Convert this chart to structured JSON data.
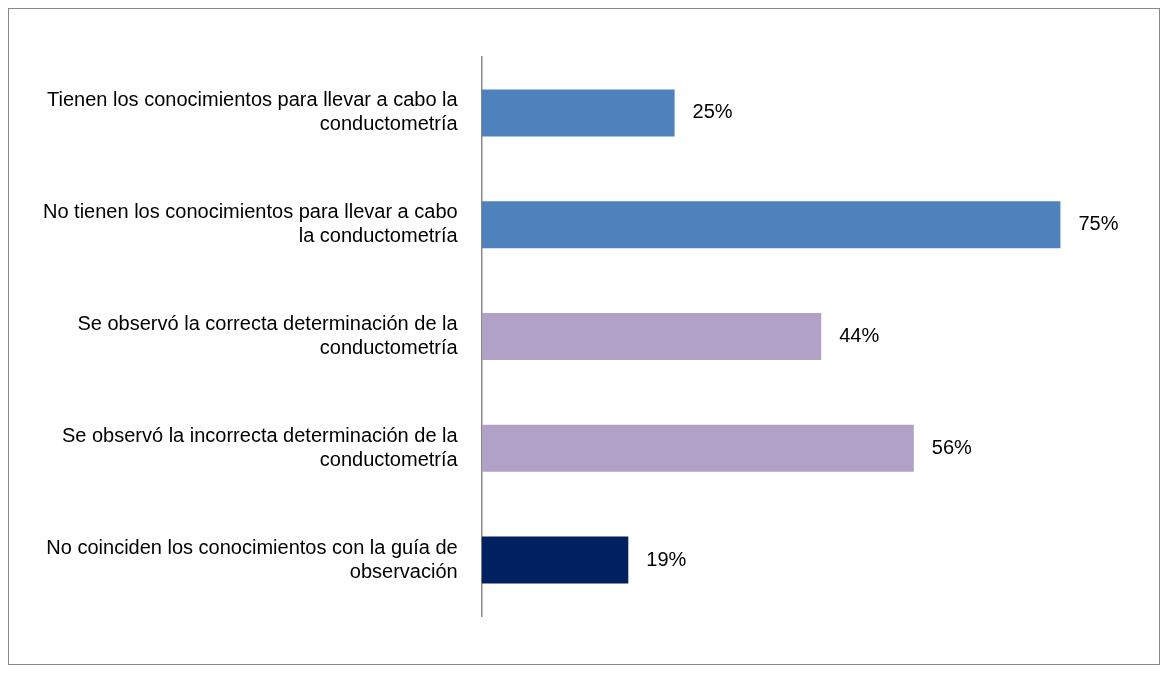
{
  "chart_data": {
    "type": "bar",
    "orientation": "horizontal",
    "categories": [
      "Tienen los conocimientos para llevar a cabo la conductometría",
      "No tienen los conocimientos para llevar a cabo la conductometría",
      "Se observó la correcta determinación de la conductometría",
      "Se observó la incorrecta determinación de la conductometría",
      "No coinciden los conocimientos con la guía de observación"
    ],
    "values": [
      25,
      75,
      44,
      56,
      19
    ],
    "colors": [
      "#4f81bd",
      "#4f81bd",
      "#b2a1c7",
      "#b2a1c7",
      "#002060"
    ],
    "value_labels": [
      "25%",
      "75%",
      "44%",
      "56%",
      "19%"
    ],
    "grid": false,
    "legend": false,
    "tick_labels": "y"
  }
}
